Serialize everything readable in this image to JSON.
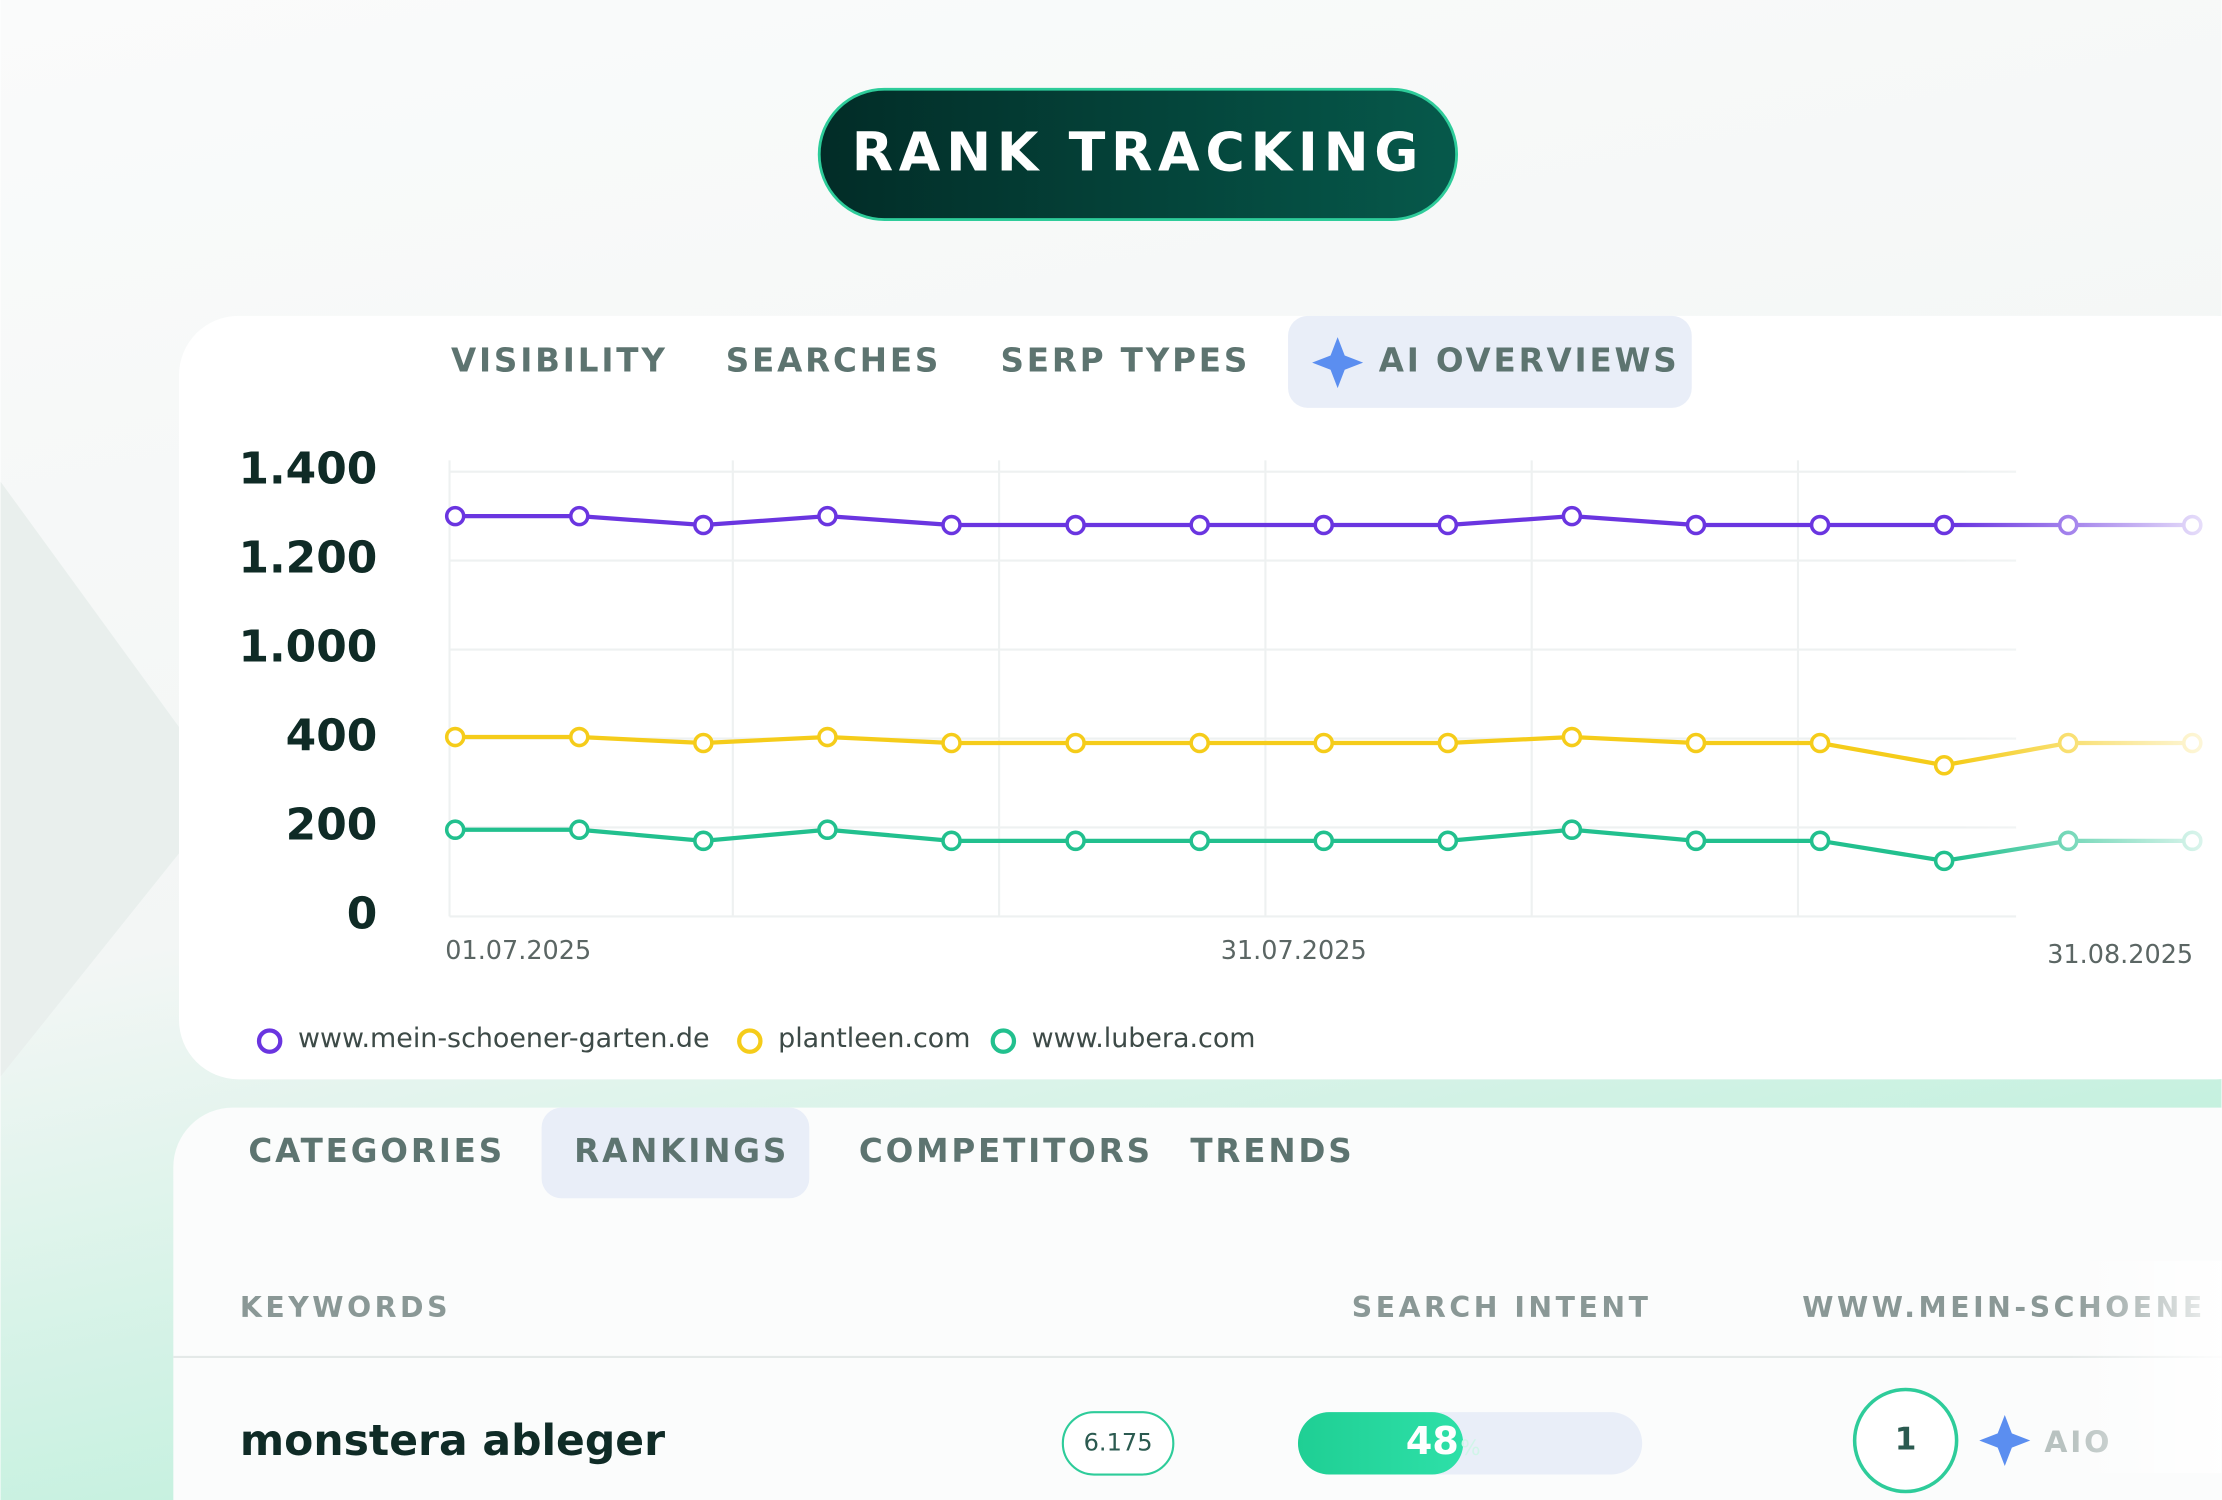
{
  "header": {
    "title": "RANK TRACKING"
  },
  "chart_tabs": {
    "items": [
      "VISIBILITY",
      "SEARCHES",
      "SERP TYPES",
      "AI OVERVIEWS"
    ],
    "active": 3
  },
  "chart_data": {
    "type": "line",
    "yticks": [
      0,
      200,
      400,
      {
        "value": 1000,
        "label": "1.000"
      },
      {
        "value": 1200,
        "label": "1.200"
      },
      {
        "value": 1400,
        "label": "1.400"
      }
    ],
    "ylim": [
      0,
      1400
    ],
    "x_labels": [
      "01.07.2025",
      "31.07.2025",
      "31.08.2025"
    ],
    "grid": true,
    "series": [
      {
        "name": "www.mein-schoener-garten.de",
        "color": "#6a35e0",
        "values": [
          1300,
          1300,
          1280,
          1300,
          1280,
          1280,
          1280,
          1280,
          1280,
          1300,
          1280,
          1280,
          1280,
          1280,
          1280
        ]
      },
      {
        "name": "plantleen.com",
        "color": "#f5cc1a",
        "values": [
          410,
          410,
          390,
          410,
          390,
          390,
          390,
          390,
          390,
          410,
          390,
          390,
          340,
          390,
          390
        ]
      },
      {
        "name": "www.lubera.com",
        "color": "#22c08e",
        "values": [
          195,
          195,
          170,
          195,
          170,
          170,
          170,
          170,
          170,
          195,
          170,
          170,
          125,
          170,
          170
        ]
      }
    ]
  },
  "table_tabs": {
    "items": [
      "CATEGORIES",
      "RANKINGS",
      "COMPETITORS",
      "TRENDS"
    ],
    "active": 1
  },
  "table": {
    "columns": [
      "KEYWORDS",
      "SEARCH INTENT",
      "WWW.MEIN-SCHOENE"
    ],
    "rows": [
      {
        "keyword": "monstera ableger",
        "volume": "6.175",
        "share": 48,
        "share_unit": "%",
        "rank": "1",
        "feature": "AIO"
      }
    ]
  }
}
